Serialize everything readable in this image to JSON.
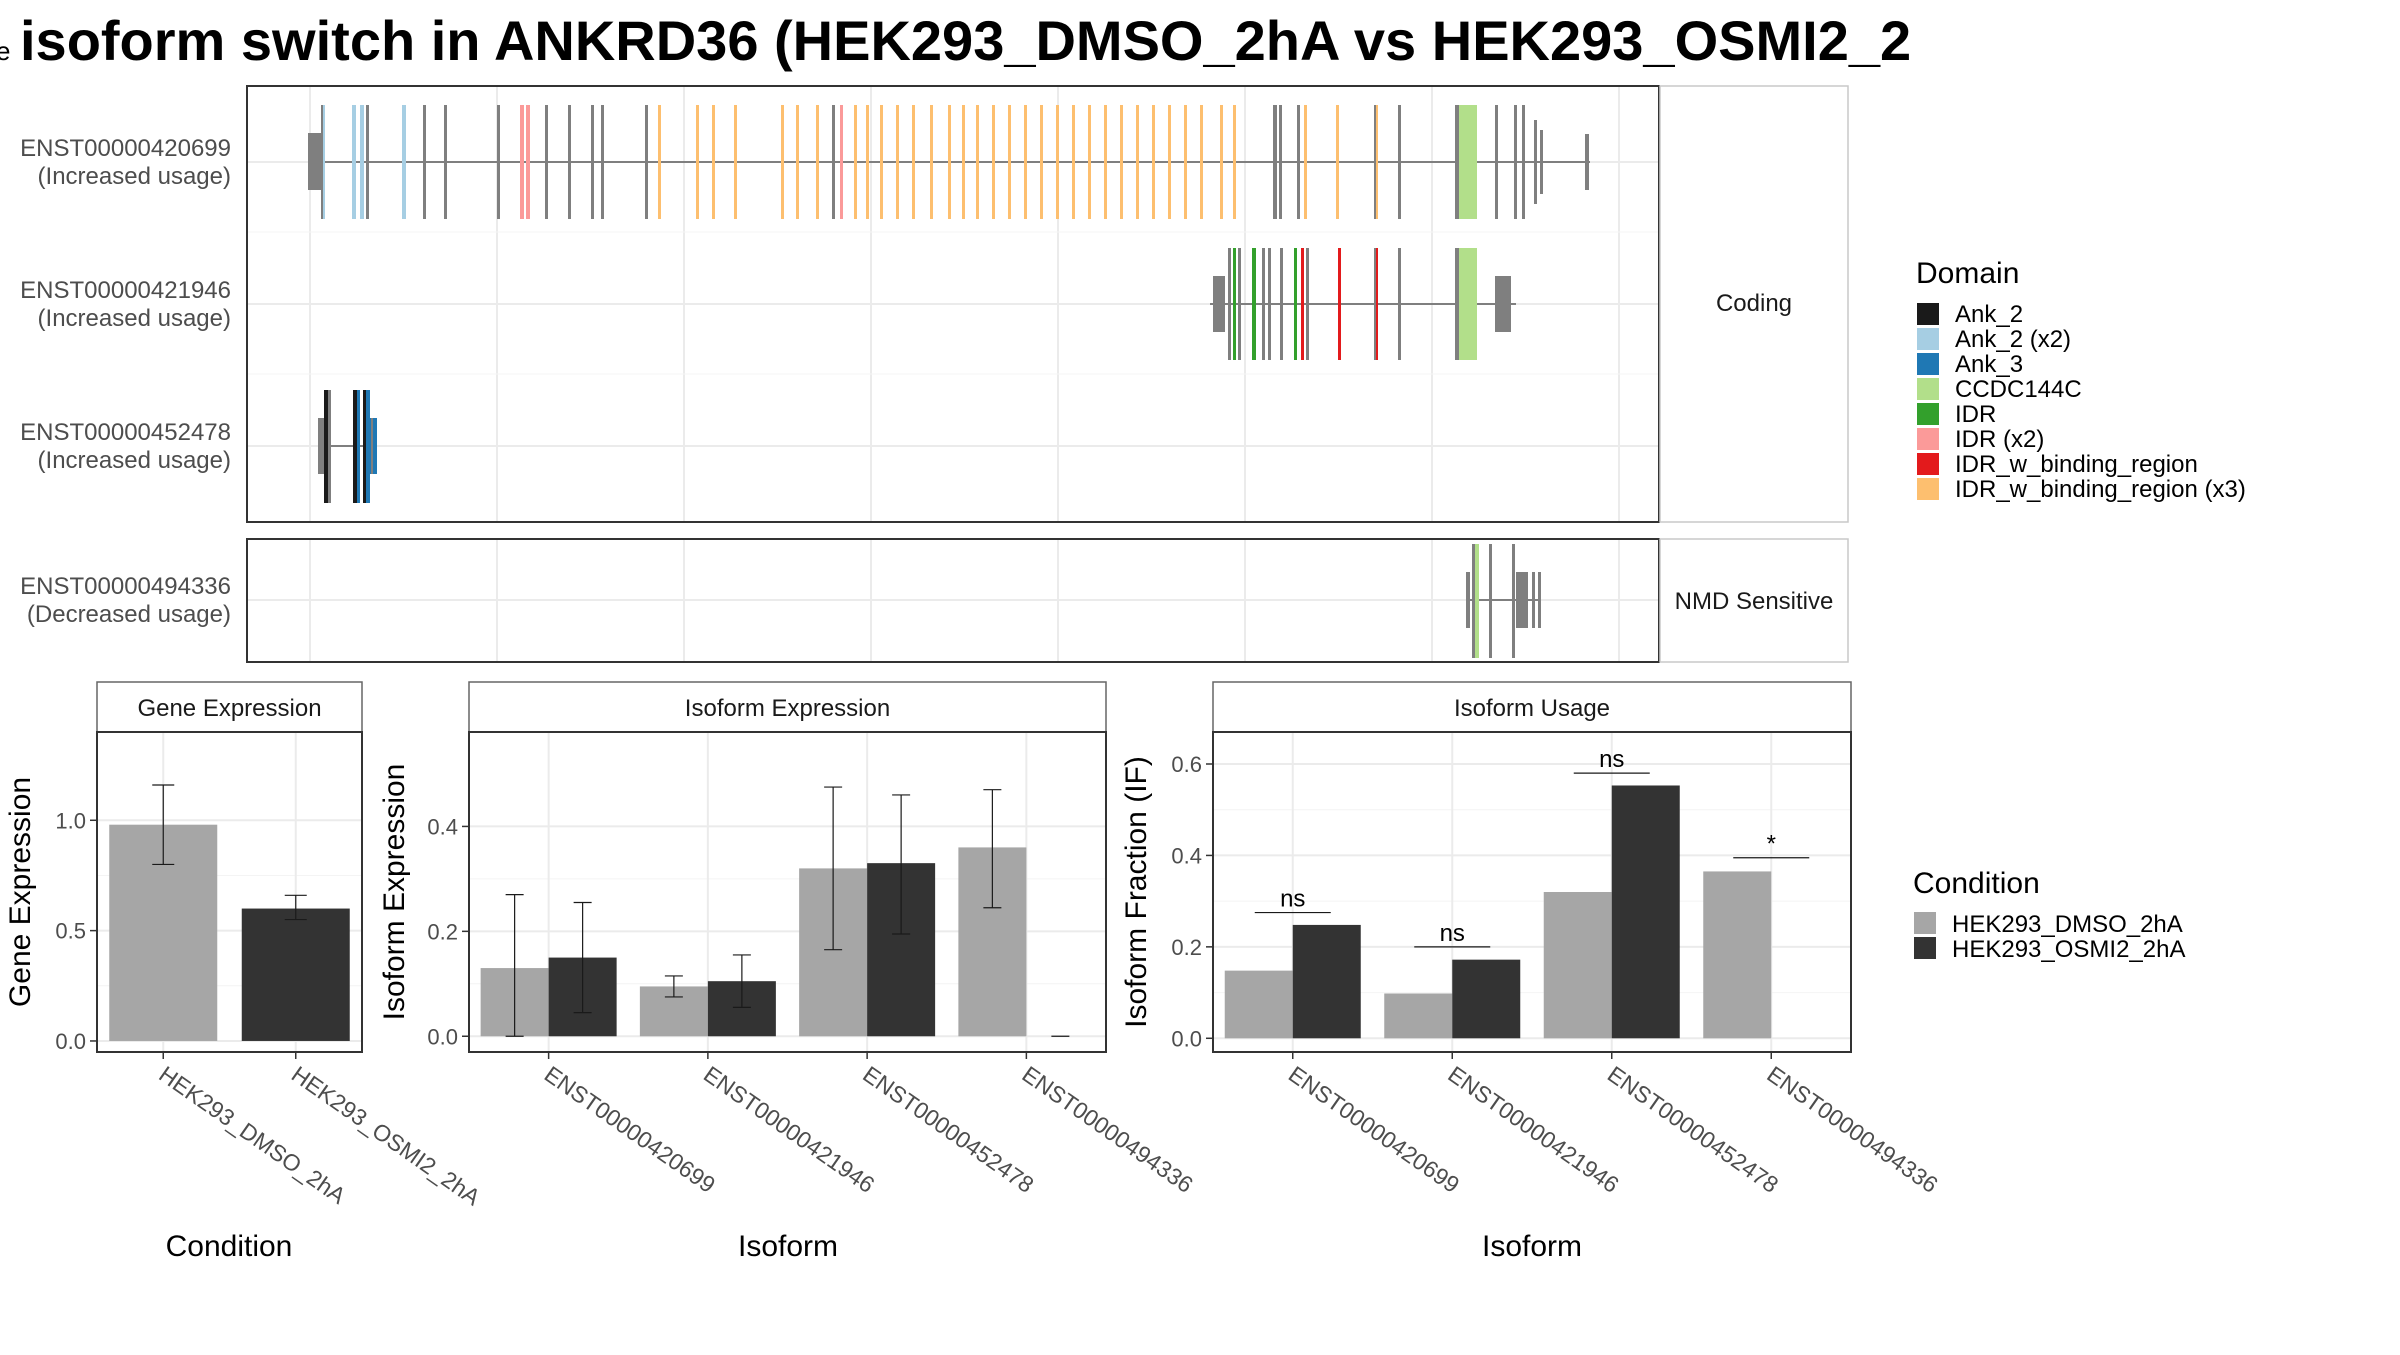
{
  "title": "isoform switch in ANKRD36 (HEK293_DMSO_2hA vs HEK293_OSMI2_2",
  "title_prefix_glyph": "e",
  "structure": {
    "coding_label": "Coding",
    "nmd_label": "NMD Sensitive",
    "coding_isoforms": [
      {
        "id": "ENST00000420699",
        "usage": "(Increased usage)"
      },
      {
        "id": "ENST00000421946",
        "usage": "(Increased usage)"
      },
      {
        "id": "ENST00000452478",
        "usage": "(Increased usage)"
      }
    ],
    "nmd_isoforms": [
      {
        "id": "ENST00000494336",
        "usage": "(Decreased usage)"
      }
    ]
  },
  "domain_legend": {
    "title": "Domain",
    "entries": [
      {
        "label": "Ank_2",
        "color": "#1a1a1a"
      },
      {
        "label": "Ank_2 (x2)",
        "color": "#a6cee3"
      },
      {
        "label": "Ank_3",
        "color": "#1f78b4"
      },
      {
        "label": "CCDC144C",
        "color": "#b2df8a"
      },
      {
        "label": "IDR",
        "color": "#33a02c"
      },
      {
        "label": "IDR (x2)",
        "color": "#fb9a99"
      },
      {
        "label": "IDR_w_binding_region",
        "color": "#e31a1c"
      },
      {
        "label": "IDR_w_binding_region (x3)",
        "color": "#fdbf6f"
      }
    ]
  },
  "condition_legend": {
    "title": "Condition",
    "entries": [
      {
        "label": "HEK293_DMSO_2hA",
        "color": "#a6a6a6"
      },
      {
        "label": "HEK293_OSMI2_2hA",
        "color": "#333333"
      }
    ]
  },
  "chart_data": [
    {
      "type": "bar",
      "panel": "Gene Expression",
      "xlabel": "Condition",
      "ylabel": "Gene Expression",
      "categories": [
        "HEK293_DMSO_2hA",
        "HEK293_OSMI2_2hA"
      ],
      "values": [
        0.98,
        0.6
      ],
      "error_low": [
        0.8,
        0.55
      ],
      "error_high": [
        1.16,
        0.66
      ],
      "ylim": [
        -0.05,
        1.4
      ],
      "yticks": [
        0.0,
        0.5,
        1.0
      ],
      "ytick_labels": [
        "0.0",
        "0.5",
        "1.0"
      ]
    },
    {
      "type": "bar",
      "panel": "Isoform Expression",
      "xlabel": "Isoform",
      "ylabel": "Isoform Expression",
      "categories": [
        "ENST00000420699",
        "ENST00000421946",
        "ENST00000452478",
        "ENST00000494336"
      ],
      "series": [
        {
          "name": "HEK293_DMSO_2hA",
          "values": [
            0.13,
            0.095,
            0.32,
            0.36
          ],
          "error_low": [
            0.0,
            0.075,
            0.165,
            0.245
          ],
          "error_high": [
            0.27,
            0.115,
            0.475,
            0.47
          ]
        },
        {
          "name": "HEK293_OSMI2_2hA",
          "values": [
            0.15,
            0.105,
            0.33,
            0.0
          ],
          "error_low": [
            0.045,
            0.055,
            0.195,
            0.0
          ],
          "error_high": [
            0.255,
            0.155,
            0.46,
            0.0
          ]
        }
      ],
      "ylim": [
        -0.03,
        0.58
      ],
      "yticks": [
        0.0,
        0.2,
        0.4
      ],
      "ytick_labels": [
        "0.0",
        "0.2",
        "0.4"
      ]
    },
    {
      "type": "bar",
      "panel": "Isoform Usage",
      "xlabel": "Isoform",
      "ylabel": "Isoform Fraction (IF)",
      "categories": [
        "ENST00000420699",
        "ENST00000421946",
        "ENST00000452478",
        "ENST00000494336"
      ],
      "series": [
        {
          "name": "HEK293_DMSO_2hA",
          "values": [
            0.148,
            0.098,
            0.32,
            0.365
          ]
        },
        {
          "name": "HEK293_OSMI2_2hA",
          "values": [
            0.248,
            0.172,
            0.553,
            0.0
          ]
        }
      ],
      "significance": [
        "ns",
        "ns",
        "ns",
        "*"
      ],
      "significance_level": [
        0.275,
        0.2,
        0.58,
        0.395
      ],
      "ylim": [
        -0.03,
        0.67
      ],
      "yticks": [
        0.0,
        0.2,
        0.4,
        0.6
      ],
      "ytick_labels": [
        "0.0",
        "0.2",
        "0.4",
        "0.6"
      ]
    }
  ]
}
